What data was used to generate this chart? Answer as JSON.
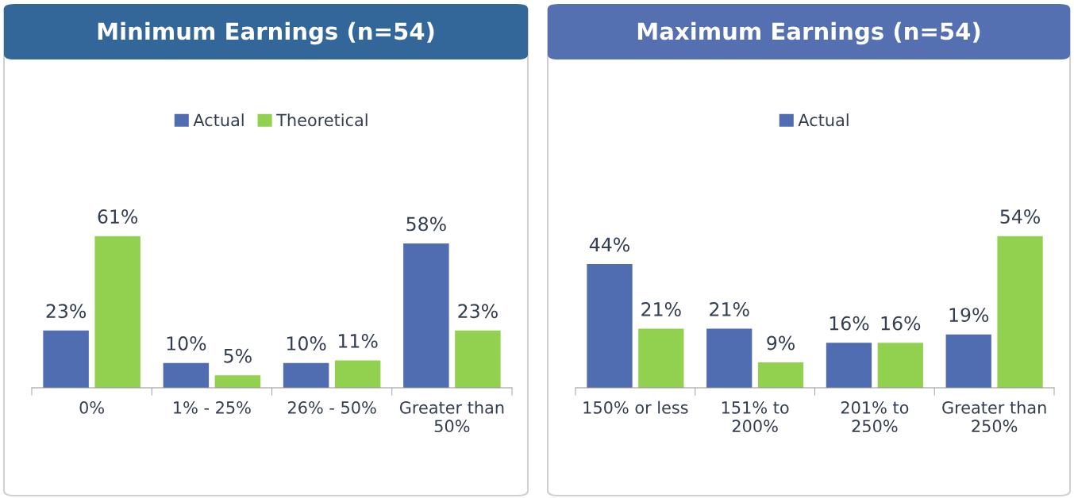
{
  "chart_data": [
    {
      "type": "bar",
      "title": "Minimum Earnings (n=54)",
      "categories": [
        "0%",
        "1% - 25%",
        "26% - 50%",
        "Greater than\n50%"
      ],
      "series": [
        {
          "name": "Actual",
          "color": "#4f6db0",
          "values": [
            23,
            10,
            10,
            58
          ],
          "value_labels": [
            "23%",
            "10%",
            "10%",
            "58%"
          ]
        },
        {
          "name": "Theoretical",
          "color": "#92d050",
          "values": [
            61,
            5,
            11,
            23
          ],
          "value_labels": [
            "61%",
            "5%",
            "11%",
            "23%"
          ]
        }
      ],
      "legend": "top",
      "tick_labels": "x",
      "grid": false
    },
    {
      "type": "bar",
      "title": "Maximum Earnings (n=54)",
      "categories": [
        "150% or less",
        "151% to\n200%",
        "201% to\n250%",
        "Greater than\n250%"
      ],
      "series": [
        {
          "name": "Actual",
          "color": "#4f6db0",
          "values": [
            44,
            21,
            16,
            19
          ],
          "value_labels": [
            "44%",
            "21%",
            "16%",
            "19%"
          ]
        },
        {
          "color": "#92d050",
          "values": [
            21,
            9,
            16,
            54
          ],
          "value_labels": [
            "21%",
            "9%",
            "16%",
            "54%"
          ]
        }
      ],
      "legend": "top",
      "tick_labels": "x",
      "grid": false
    }
  ]
}
